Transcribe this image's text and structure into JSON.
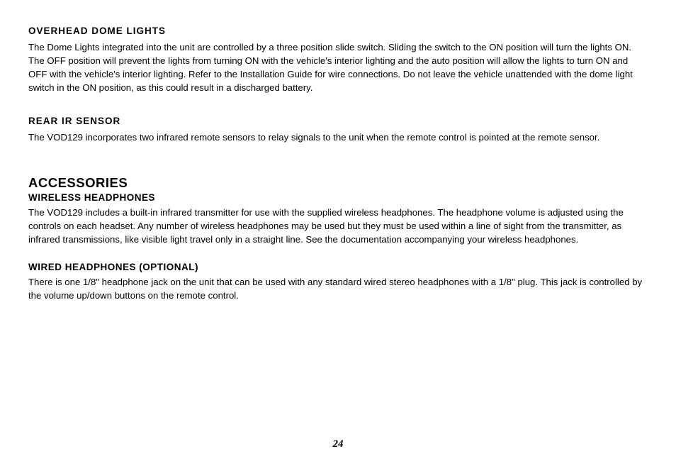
{
  "page": {
    "number": "24",
    "background_color": "#ffffff",
    "text_color": "#000000",
    "font_family": "Arial",
    "body_fontsize_pt": 10,
    "heading_fontsize_pt": 10,
    "title_fontsize_pt": 14
  },
  "sections": {
    "overhead_dome_lights": {
      "heading": "OVERHEAD DOME LIGHTS",
      "body": "The Dome Lights integrated into the unit are controlled by a three position slide switch. Sliding the switch to the ON position will turn the lights ON. The OFF position will prevent the lights from turning ON with the vehicle's interior lighting and the auto position will allow the lights to turn ON and OFF with the vehicle's interior lighting. Refer to the Installation Guide for wire connections. Do not leave the vehicle unattended with the dome light switch in the ON position, as this could result in a discharged battery."
    },
    "rear_ir_sensor": {
      "heading": "REAR IR SENSOR",
      "body": "The VOD129 incorporates two infrared remote sensors to relay signals to the unit when the remote control is pointed at the remote sensor."
    },
    "accessories": {
      "title": "ACCESSORIES",
      "wireless_headphones": {
        "heading": "WIRELESS HEADPHONES",
        "body": "The VOD129 includes a built-in infrared transmitter for use with the supplied wireless headphones. The headphone volume is adjusted using the controls on each headset. Any number of wireless headphones may be used but they must be used within a line of sight from the transmitter, as infrared transmissions, like visible light travel only in a straight line. See the documentation accompanying your wireless headphones."
      },
      "wired_headphones": {
        "heading": "WIRED HEADPHONES (OPTIONAL)",
        "body": "There is one 1/8\" headphone jack on the unit that can be used with any standard wired stereo headphones with a 1/8\" plug. This jack is controlled by the volume up/down buttons on the remote control."
      }
    }
  }
}
